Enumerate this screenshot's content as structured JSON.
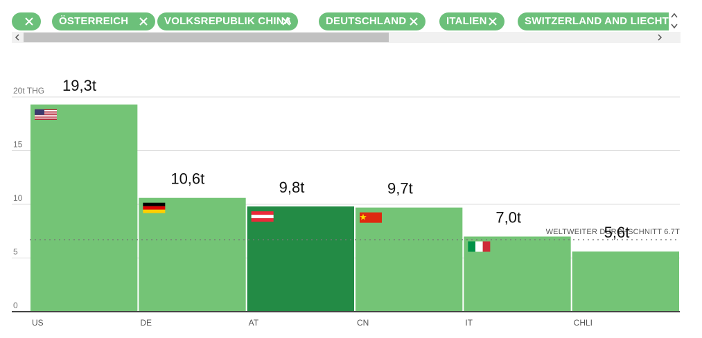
{
  "filters": {
    "chips": [
      {
        "label": ""
      },
      {
        "label": "ÖSTERREICH"
      },
      {
        "label": "VOLKSREPUBLIK CHINA"
      },
      {
        "label": "DEUTSCHLAND"
      },
      {
        "label": "ITALIEN"
      },
      {
        "label": "SWITZERLAND AND LIECHTENSTEIN"
      }
    ],
    "chip_color": "#6cc07a"
  },
  "chart_data": {
    "type": "bar",
    "ylabel": "20t THG",
    "y_ticks": [
      "0",
      "5",
      "10",
      "15",
      "20t THG"
    ],
    "ylim": [
      0,
      20
    ],
    "grid": true,
    "categories": [
      "US",
      "DE",
      "AT",
      "CN",
      "IT",
      "CHLI"
    ],
    "values": [
      19.3,
      10.6,
      9.8,
      9.7,
      7.0,
      5.6
    ],
    "value_labels": [
      "19,3t",
      "10,6t",
      "9,8t",
      "9,7t",
      "7,0t",
      "5,6t"
    ],
    "flags": [
      "us-flag-icon",
      "de-flag-icon",
      "at-flag-icon",
      "cn-flag-icon",
      "it-flag-icon",
      "none"
    ],
    "highlight": "AT",
    "bar_color": "#74c476",
    "highlight_color": "#238b45",
    "reference_line": {
      "value": 6.7,
      "label": "WELTWEITER DURCHSCHNITT 6.7T"
    }
  }
}
